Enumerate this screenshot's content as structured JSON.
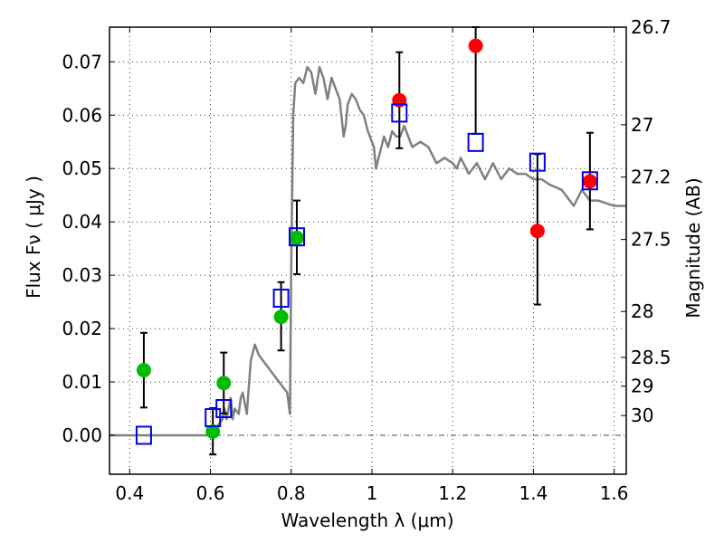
{
  "chart_data": {
    "type": "scatter",
    "title": "",
    "xlabel": "Wavelength  λ (μm)",
    "ylabel": "Flux  Fν  ( μJy )",
    "ylabel_right": "Magnitude (AB)",
    "xlim": [
      0.35,
      1.63
    ],
    "ylim": [
      -0.0073,
      0.0765
    ],
    "grid": true,
    "x_ticks": [
      0.4,
      0.6,
      0.8,
      1.0,
      1.2,
      1.4,
      1.6
    ],
    "x_tick_labels": [
      "0.4",
      "0.6",
      "0.8",
      "1",
      "1.2",
      "1.4",
      "1.6"
    ],
    "y_ticks": [
      0.0,
      0.01,
      0.02,
      0.03,
      0.04,
      0.05,
      0.06,
      0.07
    ],
    "y_tick_labels": [
      "0.00",
      "0.01",
      "0.02",
      "0.03",
      "0.04",
      "0.05",
      "0.06",
      "0.07"
    ],
    "right_ticks": [
      {
        "label": "26.7",
        "flux": 0.0765
      },
      {
        "label": "27",
        "flux": 0.0582
      },
      {
        "label": "27.2",
        "flux": 0.0484
      },
      {
        "label": "27.5",
        "flux": 0.0367
      },
      {
        "label": "28",
        "flux": 0.0232
      },
      {
        "label": "28.5",
        "flux": 0.0146
      },
      {
        "label": "29",
        "flux": 0.0092
      },
      {
        "label": "30",
        "flux": 0.0037
      }
    ],
    "zero_line": 0.0,
    "series": [
      {
        "name": "detections-green",
        "kind": "circle-errorbar",
        "color": "#00bb00",
        "points": [
          {
            "x": 0.435,
            "y": 0.0122,
            "err_lo": 0.0052,
            "err_hi": 0.0192
          },
          {
            "x": 0.606,
            "y": 0.0007,
            "err_lo": -0.0036,
            "err_hi": 0.0051
          },
          {
            "x": 0.633,
            "y": 0.0098,
            "err_lo": 0.0041,
            "err_hi": 0.0155
          },
          {
            "x": 0.775,
            "y": 0.0222,
            "err_lo": 0.0159,
            "err_hi": 0.0287
          },
          {
            "x": 0.814,
            "y": 0.037,
            "err_lo": 0.0302,
            "err_hi": 0.044
          }
        ]
      },
      {
        "name": "detections-red",
        "kind": "circle-errorbar",
        "color": "#ff0000",
        "points": [
          {
            "x": 1.068,
            "y": 0.0628,
            "err_lo": 0.0538,
            "err_hi": 0.0718
          },
          {
            "x": 1.257,
            "y": 0.073,
            "err_lo": 0.0565,
            "err_hi": 0.0765
          },
          {
            "x": 1.41,
            "y": 0.0383,
            "err_lo": 0.0245,
            "err_hi": 0.0527
          },
          {
            "x": 1.54,
            "y": 0.0476,
            "err_lo": 0.0386,
            "err_hi": 0.0567
          }
        ]
      },
      {
        "name": "model-photometry",
        "kind": "open-square",
        "color": "#0000ee",
        "points": [
          {
            "x": 0.435,
            "y": 0.0
          },
          {
            "x": 0.606,
            "y": 0.0033
          },
          {
            "x": 0.633,
            "y": 0.005
          },
          {
            "x": 0.775,
            "y": 0.0257
          },
          {
            "x": 0.814,
            "y": 0.0372
          },
          {
            "x": 1.068,
            "y": 0.0604
          },
          {
            "x": 1.257,
            "y": 0.0549
          },
          {
            "x": 1.41,
            "y": 0.0512
          },
          {
            "x": 1.54,
            "y": 0.0477
          }
        ]
      },
      {
        "name": "model-spectrum",
        "kind": "line",
        "color": "#808080",
        "x": [
          0.35,
          0.6,
          0.61,
          0.62,
          0.63,
          0.635,
          0.64,
          0.65,
          0.655,
          0.66,
          0.67,
          0.675,
          0.68,
          0.69,
          0.7,
          0.71,
          0.72,
          0.73,
          0.74,
          0.75,
          0.76,
          0.77,
          0.78,
          0.79,
          0.797,
          0.8,
          0.805,
          0.81,
          0.82,
          0.83,
          0.84,
          0.85,
          0.86,
          0.87,
          0.88,
          0.89,
          0.9,
          0.91,
          0.92,
          0.93,
          0.935,
          0.94,
          0.95,
          0.96,
          0.97,
          0.98,
          0.99,
          1.0,
          1.005,
          1.01,
          1.02,
          1.03,
          1.04,
          1.05,
          1.06,
          1.07,
          1.08,
          1.1,
          1.12,
          1.14,
          1.16,
          1.18,
          1.2,
          1.21,
          1.22,
          1.24,
          1.26,
          1.28,
          1.3,
          1.32,
          1.34,
          1.36,
          1.38,
          1.4,
          1.42,
          1.44,
          1.47,
          1.5,
          1.52,
          1.54,
          1.56,
          1.6,
          1.63
        ],
        "y": [
          0.0,
          0.0,
          0.001,
          0.002,
          0.003,
          0.005,
          0.003,
          0.007,
          0.003,
          0.005,
          0.004,
          0.007,
          0.008,
          0.004,
          0.014,
          0.017,
          0.015,
          0.014,
          0.013,
          0.012,
          0.011,
          0.01,
          0.009,
          0.008,
          0.004,
          0.03,
          0.06,
          0.066,
          0.067,
          0.066,
          0.069,
          0.068,
          0.064,
          0.069,
          0.067,
          0.063,
          0.067,
          0.065,
          0.063,
          0.056,
          0.058,
          0.062,
          0.064,
          0.063,
          0.061,
          0.06,
          0.057,
          0.055,
          0.054,
          0.05,
          0.053,
          0.056,
          0.054,
          0.057,
          0.056,
          0.056,
          0.058,
          0.054,
          0.055,
          0.054,
          0.051,
          0.052,
          0.051,
          0.05,
          0.052,
          0.049,
          0.051,
          0.048,
          0.051,
          0.048,
          0.05,
          0.049,
          0.049,
          0.048,
          0.048,
          0.047,
          0.046,
          0.043,
          0.046,
          0.044,
          0.044,
          0.043,
          0.043
        ]
      }
    ]
  }
}
